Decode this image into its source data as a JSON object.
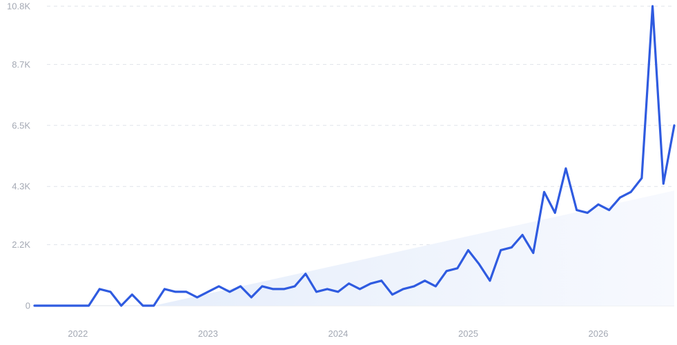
{
  "chart_data": {
    "type": "line",
    "title": "",
    "xlabel": "",
    "ylabel": "",
    "grid": true,
    "legend": "none",
    "colors": {
      "line": "#2f5be0",
      "trend_fill_start": "#e6eefb",
      "trend_fill_end": "#f7f9fe",
      "grid": "#dfe3ea",
      "tick_text": "#a3a8b3"
    },
    "y_ticks": [
      {
        "value": 0,
        "label": "0"
      },
      {
        "value": 2200,
        "label": "2.2K"
      },
      {
        "value": 4300,
        "label": "4.3K"
      },
      {
        "value": 6500,
        "label": "6.5K"
      },
      {
        "value": 8700,
        "label": "8.7K"
      },
      {
        "value": 10800,
        "label": "10.8K"
      }
    ],
    "ylim": [
      0,
      10800
    ],
    "x_ticks": [
      {
        "value": "2022-01",
        "label": "2022"
      },
      {
        "value": "2023-01",
        "label": "2023"
      },
      {
        "value": "2024-01",
        "label": "2024"
      },
      {
        "value": "2025-01",
        "label": "2025"
      },
      {
        "value": "2026-01",
        "label": "2026"
      }
    ],
    "xlim": [
      "2021-09",
      "2026-08"
    ],
    "series": [
      {
        "x": [
          "2021-09",
          "2021-10",
          "2021-11",
          "2021-12",
          "2022-01",
          "2022-02",
          "2022-03",
          "2022-04",
          "2022-05",
          "2022-06",
          "2022-07",
          "2022-08",
          "2022-09",
          "2022-10",
          "2022-11",
          "2022-12",
          "2023-01",
          "2023-02",
          "2023-03",
          "2023-04",
          "2023-05",
          "2023-06",
          "2023-07",
          "2023-08",
          "2023-09",
          "2023-10",
          "2023-11",
          "2023-12",
          "2024-01",
          "2024-02",
          "2024-03",
          "2024-04",
          "2024-05",
          "2024-06",
          "2024-07",
          "2024-08",
          "2024-09",
          "2024-10",
          "2024-11",
          "2024-12",
          "2025-01",
          "2025-02",
          "2025-03",
          "2025-04",
          "2025-05",
          "2025-06",
          "2025-07",
          "2025-08",
          "2025-09",
          "2025-10",
          "2025-11",
          "2025-12",
          "2026-01",
          "2026-02",
          "2026-03",
          "2026-04",
          "2026-05",
          "2026-06",
          "2026-07",
          "2026-08"
        ],
        "values": [
          0,
          0,
          0,
          0,
          0,
          0,
          600,
          500,
          0,
          400,
          0,
          0,
          600,
          500,
          500,
          300,
          500,
          700,
          500,
          700,
          300,
          700,
          600,
          600,
          700,
          1150,
          500,
          600,
          500,
          800,
          600,
          800,
          900,
          400,
          600,
          700,
          900,
          700,
          1250,
          1350,
          2000,
          1500,
          900,
          2000,
          2100,
          2550,
          1900,
          4100,
          3350,
          4950,
          3450,
          3350,
          3650,
          3450,
          3900,
          4100,
          4600,
          10800,
          4400,
          6500
        ]
      }
    ],
    "trend": {
      "x": [
        "2022-08",
        "2026-08"
      ],
      "values": [
        0,
        4150
      ]
    }
  }
}
